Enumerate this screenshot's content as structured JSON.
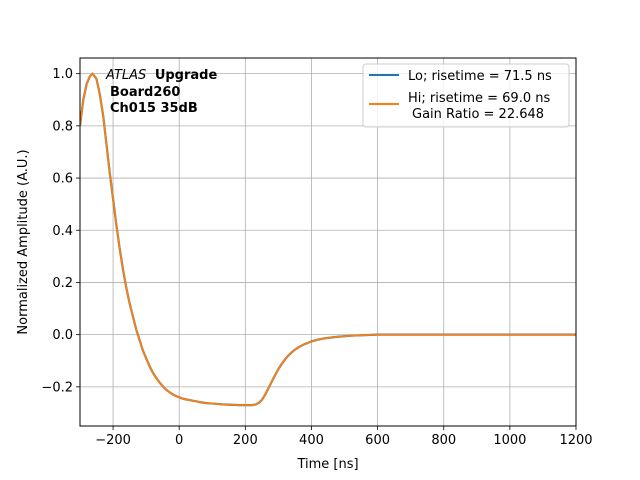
{
  "chart_data": {
    "type": "line",
    "title": "",
    "xlabel": "Time [ns]",
    "ylabel": "Normalized Amplitude (A.U.)",
    "xlim": [
      -300,
      1200
    ],
    "ylim": [
      -0.35,
      1.06
    ],
    "grid": true,
    "legend_position": "top-right",
    "x_ticks": [
      -200,
      0,
      200,
      400,
      600,
      800,
      1000,
      1200
    ],
    "x_tick_labels": [
      "−200",
      "0",
      "200",
      "400",
      "600",
      "800",
      "1000",
      "1200"
    ],
    "y_ticks": [
      -0.2,
      0.0,
      0.2,
      0.4,
      0.6,
      0.8,
      1.0
    ],
    "y_tick_labels": [
      "−0.2",
      "0.0",
      "0.2",
      "0.4",
      "0.6",
      "0.8",
      "1.0"
    ],
    "annotation": {
      "experiment": "ATLAS",
      "tag": "Upgrade",
      "board": "Board260",
      "channel": "Ch015 35dB"
    },
    "series": [
      {
        "name": "Lo; risetime = 71.5 ns",
        "color": "#1f77b4",
        "x": [
          -300,
          -290,
          -280,
          -270,
          -262,
          -250,
          -240,
          -230,
          -220,
          -210,
          -200,
          -190,
          -180,
          -170,
          -160,
          -150,
          -140,
          -130,
          -120,
          -110,
          -100,
          -90,
          -80,
          -70,
          -60,
          -50,
          -40,
          -30,
          -20,
          -10,
          0,
          10,
          20,
          30,
          40,
          50,
          60,
          70,
          80,
          90,
          100,
          110,
          120,
          130,
          140,
          150,
          160,
          170,
          180,
          190,
          200,
          210,
          220,
          230,
          240,
          250,
          260,
          270,
          280,
          290,
          300,
          310,
          320,
          330,
          340,
          350,
          360,
          370,
          380,
          390,
          400,
          420,
          440,
          460,
          480,
          500,
          520,
          540,
          560,
          580,
          600,
          650,
          700,
          750,
          800,
          850,
          900,
          950,
          1000,
          1050,
          1100,
          1150,
          1200
        ],
        "y": [
          0.8,
          0.9,
          0.96,
          0.99,
          1.0,
          0.98,
          0.92,
          0.84,
          0.73,
          0.62,
          0.52,
          0.42,
          0.33,
          0.25,
          0.18,
          0.12,
          0.07,
          0.02,
          -0.02,
          -0.06,
          -0.09,
          -0.12,
          -0.145,
          -0.165,
          -0.182,
          -0.197,
          -0.21,
          -0.22,
          -0.228,
          -0.235,
          -0.24,
          -0.245,
          -0.248,
          -0.25,
          -0.253,
          -0.255,
          -0.258,
          -0.26,
          -0.262,
          -0.263,
          -0.264,
          -0.265,
          -0.266,
          -0.267,
          -0.268,
          -0.268,
          -0.269,
          -0.269,
          -0.27,
          -0.27,
          -0.27,
          -0.27,
          -0.27,
          -0.268,
          -0.262,
          -0.25,
          -0.23,
          -0.205,
          -0.18,
          -0.155,
          -0.132,
          -0.112,
          -0.095,
          -0.08,
          -0.068,
          -0.058,
          -0.049,
          -0.042,
          -0.036,
          -0.031,
          -0.026,
          -0.019,
          -0.014,
          -0.011,
          -0.008,
          -0.006,
          -0.004,
          -0.003,
          -0.002,
          -0.001,
          0.0,
          0.0,
          0.0,
          0.0,
          0.0,
          0.0,
          0.0,
          0.0,
          0.0,
          0.0,
          0.0,
          0.0,
          0.0
        ]
      },
      {
        "name": "Hi; risetime = 69.0 ns",
        "name_line2": "Gain Ratio = 22.648",
        "color": "#ff7f0e",
        "x": [
          -300,
          -290,
          -280,
          -270,
          -262,
          -250,
          -240,
          -230,
          -220,
          -210,
          -200,
          -190,
          -180,
          -170,
          -160,
          -150,
          -140,
          -130,
          -120,
          -110,
          -100,
          -90,
          -80,
          -70,
          -60,
          -50,
          -40,
          -30,
          -20,
          -10,
          0,
          10,
          20,
          30,
          40,
          50,
          60,
          70,
          80,
          90,
          100,
          110,
          120,
          130,
          140,
          150,
          160,
          170,
          180,
          190,
          200,
          210,
          220,
          230,
          240,
          250,
          260,
          270,
          280,
          290,
          300,
          310,
          320,
          330,
          340,
          350,
          360,
          370,
          380,
          390,
          400,
          420,
          440,
          460,
          480,
          500,
          520,
          540,
          560,
          580,
          600,
          650,
          700,
          750,
          800,
          850,
          900,
          950,
          1000,
          1050,
          1100,
          1150,
          1200
        ],
        "y": [
          0.8,
          0.9,
          0.96,
          0.99,
          1.0,
          0.98,
          0.92,
          0.84,
          0.73,
          0.62,
          0.52,
          0.42,
          0.33,
          0.25,
          0.18,
          0.12,
          0.07,
          0.02,
          -0.02,
          -0.06,
          -0.09,
          -0.12,
          -0.145,
          -0.165,
          -0.182,
          -0.197,
          -0.21,
          -0.22,
          -0.228,
          -0.235,
          -0.24,
          -0.245,
          -0.248,
          -0.25,
          -0.253,
          -0.255,
          -0.258,
          -0.26,
          -0.262,
          -0.263,
          -0.264,
          -0.265,
          -0.266,
          -0.267,
          -0.268,
          -0.268,
          -0.269,
          -0.269,
          -0.27,
          -0.27,
          -0.27,
          -0.27,
          -0.27,
          -0.268,
          -0.262,
          -0.25,
          -0.23,
          -0.205,
          -0.18,
          -0.155,
          -0.132,
          -0.112,
          -0.095,
          -0.08,
          -0.068,
          -0.058,
          -0.049,
          -0.042,
          -0.036,
          -0.031,
          -0.026,
          -0.019,
          -0.014,
          -0.011,
          -0.008,
          -0.006,
          -0.004,
          -0.003,
          -0.002,
          -0.001,
          0.0,
          0.0,
          0.0,
          0.0,
          0.0,
          0.0,
          0.0,
          0.0,
          0.0,
          0.0,
          0.0,
          0.0,
          0.0
        ]
      }
    ]
  }
}
